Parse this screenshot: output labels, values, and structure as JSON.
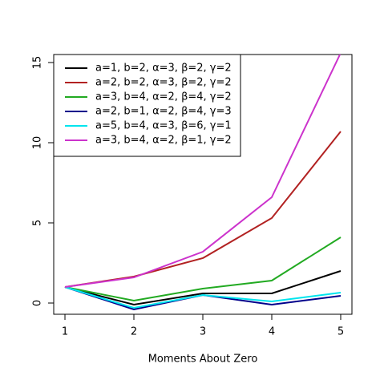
{
  "chart_data": {
    "type": "line",
    "x_label": "Moments About Zero",
    "x": [
      1,
      2,
      3,
      4,
      5
    ],
    "xlim": [
      0.837,
      5.163
    ],
    "xticks": [
      1,
      2,
      3,
      4,
      5
    ],
    "ylim": [
      -0.7,
      15.5
    ],
    "yticks": [
      0,
      5,
      10,
      15
    ],
    "legend": "top-left",
    "series": [
      {
        "name": "a=1, b=2, α=3, β=2, γ=2",
        "color": "#000000",
        "values": [
          1,
          -0.1,
          0.6,
          0.6,
          2.0
        ]
      },
      {
        "name": "a=2, b=2, α=3, β=2, γ=2",
        "color": "#b22222",
        "values": [
          1,
          1.65,
          2.8,
          5.3,
          10.7
        ]
      },
      {
        "name": "a=3, b=4, α=2, β=4, γ=2",
        "color": "#22aa22",
        "values": [
          1,
          0.15,
          0.9,
          1.4,
          4.1
        ]
      },
      {
        "name": "a=2, b=1, α=2, β=4, γ=3",
        "color": "#00008b",
        "values": [
          1,
          -0.4,
          0.5,
          -0.1,
          0.45
        ]
      },
      {
        "name": "a=5, b=4, α=3, β=6, γ=1",
        "color": "#00e5ee",
        "values": [
          1,
          -0.3,
          0.5,
          0.1,
          0.65
        ]
      },
      {
        "name": "a=3, b=4, α=2, β=1, γ=2",
        "color": "#cc33cc",
        "values": [
          1,
          1.6,
          3.2,
          6.6,
          15.6
        ]
      }
    ]
  }
}
